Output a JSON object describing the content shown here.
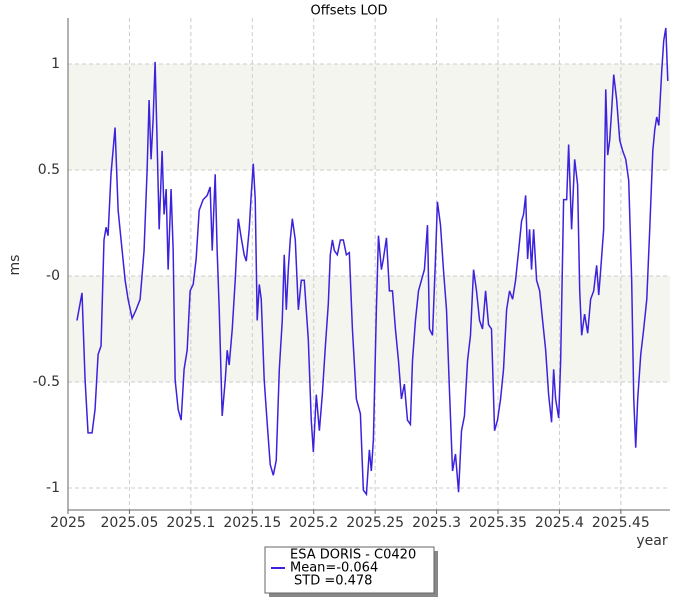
{
  "chart_data": {
    "type": "line",
    "title": "Offsets LOD",
    "xlabel": "year",
    "ylabel": "ms",
    "xlim": [
      2025,
      2025.49
    ],
    "ylim": [
      -1.104,
      1.217
    ],
    "xticks": [
      2025,
      2025.05,
      2025.1,
      2025.15,
      2025.2,
      2025.25,
      2025.3,
      2025.35,
      2025.4,
      2025.45
    ],
    "yticks": [
      -1,
      -0.5,
      {
        "value": 0,
        "label": "-0"
      },
      0.5,
      1
    ],
    "grid": true,
    "legend_position": "bottom",
    "legend_lines": [
      "Mean=-0.064",
      "STD =0.478"
    ],
    "x": [
      2025.0073,
      2025.0114,
      2025.0139,
      2025.0163,
      2025.0196,
      2025.022,
      2025.0245,
      2025.0269,
      2025.0293,
      2025.031,
      2025.0326,
      2025.035,
      2025.0383,
      2025.0408,
      2025.0432,
      2025.0465,
      2025.0489,
      2025.0522,
      2025.0554,
      2025.0587,
      2025.0619,
      2025.0644,
      2025.066,
      2025.0676,
      2025.0693,
      2025.0709,
      2025.0725,
      2025.0742,
      2025.0766,
      2025.0782,
      2025.0799,
      2025.0815,
      2025.0839,
      2025.0856,
      2025.0872,
      2025.0897,
      2025.0921,
      2025.0945,
      2025.097,
      2025.0994,
      2025.1019,
      2025.1043,
      2025.1068,
      2025.11,
      2025.1133,
      2025.1157,
      2025.1174,
      2025.1198,
      2025.1214,
      2025.1231,
      2025.1255,
      2025.128,
      2025.1296,
      2025.1312,
      2025.1337,
      2025.1361,
      2025.1386,
      2025.141,
      2025.1434,
      2025.1451,
      2025.1475,
      2025.1491,
      2025.1508,
      2025.1524,
      2025.154,
      2025.1557,
      2025.1573,
      2025.1597,
      2025.1622,
      2025.1646,
      2025.1671,
      2025.1695,
      2025.172,
      2025.1744,
      2025.176,
      2025.1777,
      2025.1793,
      2025.1809,
      2025.1826,
      2025.185,
      2025.1875,
      2025.1899,
      2025.1923,
      2025.1956,
      2025.198,
      2025.1997,
      2025.2021,
      2025.2046,
      2025.207,
      2025.2095,
      2025.2119,
      2025.2135,
      2025.2152,
      2025.2168,
      2025.2192,
      2025.2217,
      2025.2241,
      2025.2266,
      2025.229,
      2025.2315,
      2025.2347,
      2025.238,
      2025.2404,
      2025.2429,
      2025.2453,
      2025.2469,
      2025.2486,
      2025.251,
      2025.2527,
      2025.2551,
      2025.2567,
      2025.2592,
      2025.2616,
      2025.2641,
      2025.2665,
      2025.269,
      2025.2714,
      2025.2738,
      2025.2763,
      2025.2787,
      2025.2804,
      2025.2828,
      2025.2853,
      2025.2877,
      2025.2901,
      2025.2926,
      2025.2942,
      2025.2967,
      2025.2991,
      2025.3007,
      2025.3032,
      2025.3056,
      2025.3081,
      2025.3105,
      2025.313,
      2025.3154,
      2025.3179,
      2025.3203,
      2025.3227,
      2025.3252,
      2025.3276,
      2025.3301,
      2025.3325,
      2025.335,
      2025.3374,
      2025.3399,
      2025.3423,
      2025.3447,
      2025.3472,
      2025.3496,
      2025.3521,
      2025.3545,
      2025.357,
      2025.3594,
      2025.3619,
      2025.3643,
      2025.3668,
      2025.3692,
      2025.3708,
      2025.3725,
      2025.3741,
      2025.3757,
      2025.3773,
      2025.379,
      2025.3814,
      2025.3839,
      2025.3863,
      2025.3888,
      2025.3912,
      2025.3936,
      2025.3953,
      2025.3969,
      2025.3994,
      2025.401,
      2025.4034,
      2025.4059,
      2025.4075,
      2025.4099,
      2025.4124,
      2025.4148,
      2025.4165,
      2025.4181,
      2025.4205,
      2025.423,
      2025.4254,
      2025.4279,
      2025.4303,
      2025.432,
      2025.4336,
      2025.436,
      2025.4377,
      2025.4393,
      2025.4409,
      2025.4425,
      2025.4442,
      2025.4466,
      2025.4491,
      2025.4515,
      2025.454,
      2025.4564,
      2025.4588,
      2025.4605,
      2025.4621,
      2025.4637,
      2025.4662,
      2025.4686,
      2025.4711,
      2025.4735,
      2025.476,
      2025.4776,
      2025.4792,
      2025.4809,
      2025.4833,
      2025.4849,
      2025.4866,
      2025.4882
    ],
    "series": [
      {
        "name": "ESA DORIS - C0420",
        "color": "#3b22dc",
        "values": [
          -0.21,
          -0.08,
          -0.49,
          -0.74,
          -0.74,
          -0.63,
          -0.37,
          -0.33,
          0.17,
          0.23,
          0.19,
          0.48,
          0.7,
          0.31,
          0.17,
          -0.02,
          -0.11,
          -0.2,
          -0.16,
          -0.11,
          0.12,
          0.5,
          0.83,
          0.55,
          0.74,
          1.01,
          0.64,
          0.22,
          0.59,
          0.29,
          0.41,
          0.03,
          0.41,
          0.12,
          -0.49,
          -0.63,
          -0.68,
          -0.44,
          -0.35,
          -0.07,
          -0.04,
          0.08,
          0.31,
          0.36,
          0.38,
          0.42,
          0.12,
          0.48,
          0.12,
          -0.16,
          -0.66,
          -0.49,
          -0.35,
          -0.42,
          -0.25,
          -0.02,
          0.27,
          0.18,
          0.1,
          0.07,
          0.22,
          0.38,
          0.53,
          0.36,
          -0.21,
          -0.04,
          -0.11,
          -0.49,
          -0.7,
          -0.89,
          -0.94,
          -0.87,
          -0.44,
          -0.21,
          0.1,
          -0.16,
          0.03,
          0.17,
          0.27,
          0.17,
          -0.16,
          -0.02,
          -0.02,
          -0.3,
          -0.68,
          -0.83,
          -0.56,
          -0.73,
          -0.56,
          -0.33,
          -0.13,
          0.1,
          0.17,
          0.12,
          0.1,
          0.17,
          0.17,
          0.1,
          0.11,
          -0.25,
          -0.58,
          -0.65,
          -1.01,
          -1.03,
          -0.82,
          -0.92,
          -0.77,
          -0.16,
          0.19,
          0.03,
          0.08,
          0.18,
          -0.07,
          -0.07,
          -0.25,
          -0.4,
          -0.58,
          -0.51,
          -0.68,
          -0.7,
          -0.4,
          -0.21,
          -0.07,
          -0.02,
          0.03,
          0.24,
          -0.25,
          -0.28,
          0.08,
          0.35,
          0.24,
          0.03,
          -0.16,
          -0.54,
          -0.92,
          -0.84,
          -1.02,
          -0.73,
          -0.66,
          -0.4,
          -0.28,
          0.03,
          -0.07,
          -0.21,
          -0.25,
          -0.07,
          -0.23,
          -0.25,
          -0.73,
          -0.68,
          -0.58,
          -0.44,
          -0.16,
          -0.07,
          -0.11,
          -0.02,
          0.12,
          0.26,
          0.29,
          0.38,
          0.08,
          0.22,
          0.03,
          0.22,
          -0.02,
          -0.07,
          -0.21,
          -0.35,
          -0.56,
          -0.69,
          -0.44,
          -0.58,
          -0.67,
          -0.4,
          0.36,
          0.36,
          0.62,
          0.22,
          0.55,
          0.43,
          -0.07,
          -0.28,
          -0.18,
          -0.27,
          -0.11,
          -0.07,
          0.05,
          -0.09,
          0.03,
          0.22,
          0.88,
          0.57,
          0.64,
          0.78,
          0.95,
          0.83,
          0.64,
          0.59,
          0.55,
          0.45,
          -0.02,
          -0.58,
          -0.81,
          -0.58,
          -0.37,
          -0.25,
          -0.11,
          0.22,
          0.59,
          0.69,
          0.75,
          0.71,
          0.97,
          1.11,
          1.17,
          0.92
        ]
      }
    ]
  }
}
